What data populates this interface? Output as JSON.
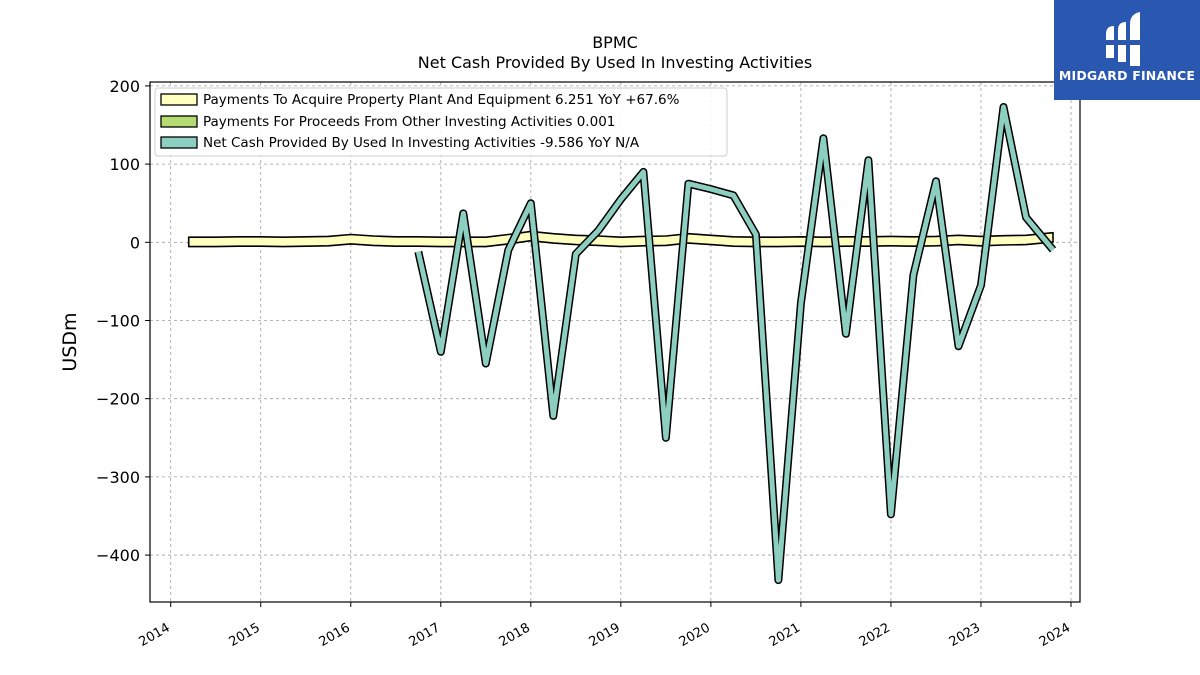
{
  "chart_data": {
    "type": "line",
    "title": "BPMC",
    "subtitle": "Net Cash Provided By Used In Investing Activities",
    "ylabel": "USDm",
    "xlabel": "",
    "xlim": [
      2013.77,
      2024.1
    ],
    "ylim": [
      -460,
      205
    ],
    "yticks": [
      200,
      100,
      0,
      -100,
      -200,
      -300,
      -400
    ],
    "ytick_labels": [
      "200",
      "100",
      "0",
      "−100",
      "−200",
      "−300",
      "−400"
    ],
    "xticks": [
      2014,
      2015,
      2016,
      2017,
      2018,
      2019,
      2020,
      2021,
      2022,
      2023,
      2024
    ],
    "xtick_labels": [
      "2014",
      "2015",
      "2016",
      "2017",
      "2018",
      "2019",
      "2020",
      "2021",
      "2022",
      "2023",
      "2024"
    ],
    "grid": true,
    "legend_position": "top-left",
    "series": [
      {
        "name": "Payments To Acquire Property Plant And Equipment  6.251 YoY +67.6%",
        "color": "#ffffbf",
        "band": true,
        "band_width_ux": 12,
        "x": [
          2014.2,
          2014.5,
          2014.75,
          2015.0,
          2015.25,
          2015.5,
          2015.75,
          2016.0,
          2016.25,
          2016.5,
          2016.75,
          2017.0,
          2017.25,
          2017.5,
          2017.75,
          2018.0,
          2018.25,
          2018.5,
          2018.75,
          2019.0,
          2019.25,
          2019.5,
          2019.75,
          2020.0,
          2020.25,
          2020.5,
          2020.75,
          2021.0,
          2021.25,
          2021.5,
          2021.75,
          2022.0,
          2022.25,
          2022.5,
          2022.75,
          2023.0,
          2023.25,
          2023.5,
          2023.8
        ],
        "y": [
          0.5,
          0.5,
          1,
          1,
          0.5,
          1,
          1.5,
          4,
          2,
          1,
          1,
          0.5,
          0.5,
          0.5,
          4,
          8,
          5,
          3,
          2,
          0.5,
          1.5,
          2,
          5,
          3,
          1,
          0.5,
          0.5,
          1,
          0.5,
          1,
          1,
          1.5,
          1,
          1.5,
          3,
          1.5,
          2.5,
          3,
          6.251
        ]
      },
      {
        "name": "Payments For Proceeds From Other Investing Activities  0.001",
        "color": "#b5dc73",
        "band": false,
        "x": [],
        "y": []
      },
      {
        "name": "Net Cash Provided By Used In Investing Activities  -9.586 YoY N/A",
        "color": "#8ccfc0",
        "band": false,
        "x": [
          2016.75,
          2017.0,
          2017.25,
          2017.5,
          2017.75,
          2018.0,
          2018.25,
          2018.5,
          2018.75,
          2019.0,
          2019.25,
          2019.5,
          2019.75,
          2020.0,
          2020.25,
          2020.5,
          2020.75,
          2021.0,
          2021.25,
          2021.5,
          2021.75,
          2022.0,
          2022.25,
          2022.5,
          2022.75,
          2023.0,
          2023.25,
          2023.5,
          2023.8
        ],
        "y": [
          -12,
          -140,
          37,
          -155,
          -10,
          50,
          -222,
          -15,
          15,
          55,
          90,
          -250,
          75,
          68,
          60,
          10,
          -432,
          -78,
          133,
          -117,
          105,
          -348,
          -42,
          78,
          -133,
          -55,
          173,
          32,
          -9.586
        ]
      }
    ]
  },
  "logo": {
    "text": "MIDGARD FINANCE",
    "bg_color": "#2a58b0"
  }
}
